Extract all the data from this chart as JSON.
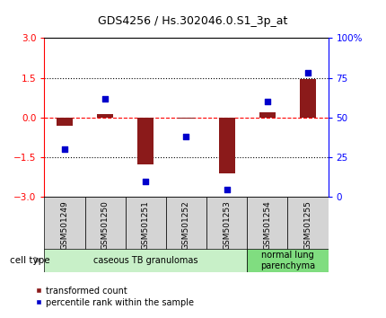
{
  "title": "GDS4256 / Hs.302046.0.S1_3p_at",
  "samples": [
    "GSM501249",
    "GSM501250",
    "GSM501251",
    "GSM501252",
    "GSM501253",
    "GSM501254",
    "GSM501255"
  ],
  "transformed_counts": [
    -0.3,
    0.15,
    -1.75,
    -0.05,
    -2.1,
    0.2,
    1.45
  ],
  "percentile_ranks": [
    30,
    62,
    10,
    38,
    5,
    60,
    78
  ],
  "ylim_left": [
    -3,
    3
  ],
  "ylim_right": [
    0,
    100
  ],
  "yticks_left": [
    -3,
    -1.5,
    0,
    1.5,
    3
  ],
  "yticks_right": [
    0,
    25,
    50,
    75,
    100
  ],
  "yticklabels_right": [
    "0",
    "25",
    "50",
    "75",
    "100%"
  ],
  "bar_color": "#8B1A1A",
  "dot_color": "#0000CC",
  "cell_type_groups": [
    {
      "label": "caseous TB granulomas",
      "start": 0,
      "end": 5,
      "color": "#c8f0c8"
    },
    {
      "label": "normal lung\nparenchyma",
      "start": 5,
      "end": 7,
      "color": "#80dd80"
    }
  ],
  "cell_type_label": "cell type",
  "legend_entries": [
    "transformed count",
    "percentile rank within the sample"
  ],
  "legend_colors": [
    "#8B1A1A",
    "#0000CC"
  ]
}
